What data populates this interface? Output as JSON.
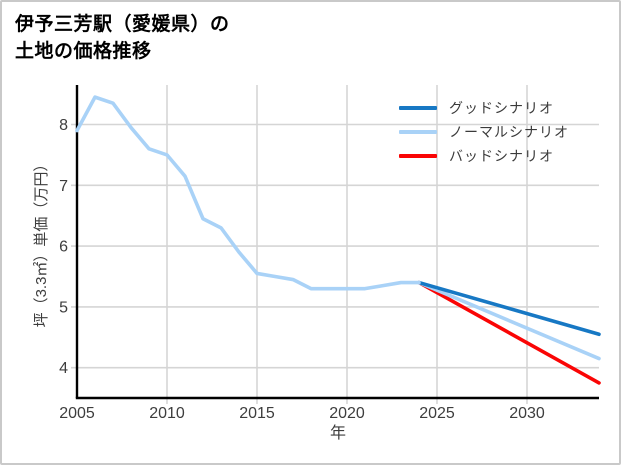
{
  "title": {
    "line1": "伊予三芳駅（愛媛県）の",
    "line2": "土地の価格推移"
  },
  "chart_data": {
    "type": "line",
    "title": "伊予三芳駅（愛媛県）の土地の価格推移",
    "xlabel": "年",
    "ylabel": "坪（3.3㎡）単価（万円）",
    "x_ticks": [
      2005,
      2010,
      2015,
      2020,
      2025,
      2030
    ],
    "y_ticks": [
      4,
      5,
      6,
      7,
      8
    ],
    "x_range": [
      2005,
      2034
    ],
    "y_range": [
      3.5,
      8.65
    ],
    "grid": true,
    "legend_position": "top-right",
    "historical": {
      "x": [
        2005,
        2006,
        2007,
        2008,
        2009,
        2010,
        2011,
        2012,
        2013,
        2014,
        2015,
        2016,
        2017,
        2018,
        2019,
        2020,
        2021,
        2022,
        2023,
        2024
      ],
      "values": [
        7.9,
        8.45,
        8.35,
        7.95,
        7.6,
        7.5,
        7.15,
        6.45,
        6.3,
        5.9,
        5.55,
        5.5,
        5.45,
        5.3,
        5.3,
        5.3,
        5.3,
        5.35,
        5.4,
        5.4
      ],
      "color": "#a9d2f7"
    },
    "scenarios": [
      {
        "name": "グッドシナリオ",
        "color": "#1778c4",
        "x": [
          2024,
          2034
        ],
        "values": [
          5.4,
          4.55
        ]
      },
      {
        "name": "ノーマルシナリオ",
        "color": "#a9d2f7",
        "x": [
          2024,
          2034
        ],
        "values": [
          5.4,
          4.15
        ]
      },
      {
        "name": "バッドシナリオ",
        "color": "#fa0505",
        "x": [
          2024,
          2034
        ],
        "values": [
          5.4,
          3.75
        ]
      }
    ],
    "style": {
      "grid_color": "#d5d5d5",
      "axis_color": "#000000",
      "tick_label_color": "#3d3d3d",
      "line_width": 3.6
    }
  }
}
